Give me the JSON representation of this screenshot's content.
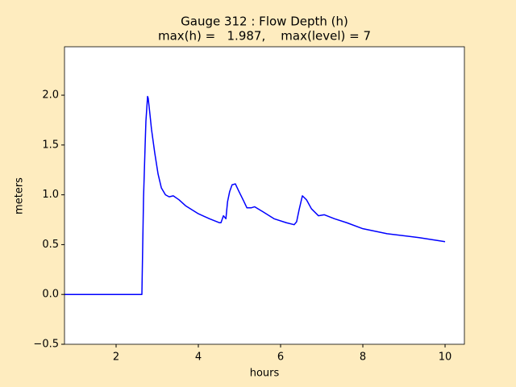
{
  "chart_data": {
    "type": "line",
    "title": "Gauge 312 : Flow Depth (h)",
    "subtitle": "max(h) =   1.987,    max(level) = 7",
    "x_label": "hours",
    "y_label": "meters",
    "xlim": [
      0.745,
      10.47
    ],
    "ylim": [
      -0.5,
      2.486
    ],
    "xticks": [
      2,
      4,
      6,
      8,
      10
    ],
    "yticks": [
      {
        "value": -0.5,
        "label": "−0.5"
      },
      {
        "value": 0,
        "label": "0.0"
      },
      0.5,
      {
        "value": 1,
        "label": "1.0"
      },
      1.5,
      {
        "value": 2,
        "label": "2.0"
      }
    ],
    "grid": false,
    "x": [
      0.745,
      2.627,
      2.667,
      2.706,
      2.725,
      2.765,
      2.78,
      2.82,
      2.86,
      2.94,
      3.02,
      3.1,
      3.2,
      3.29,
      3.39,
      3.53,
      3.69,
      4.0,
      4.27,
      4.51,
      4.55,
      4.61,
      4.67,
      4.71,
      4.76,
      4.82,
      4.9,
      4.98,
      5.1,
      5.18,
      5.29,
      5.37,
      5.57,
      5.84,
      6.14,
      6.33,
      6.39,
      6.45,
      6.53,
      6.63,
      6.75,
      6.92,
      7.06,
      7.31,
      7.61,
      8.0,
      8.59,
      9.37,
      10.0
    ],
    "series": [
      {
        "color": "#0000ff",
        "values": [
          0,
          0,
          0.97,
          1.5,
          1.74,
          1.987,
          1.97,
          1.82,
          1.66,
          1.42,
          1.21,
          1.07,
          1.0,
          0.98,
          0.99,
          0.95,
          0.89,
          0.81,
          0.76,
          0.72,
          0.72,
          0.79,
          0.76,
          0.93,
          1.03,
          1.1,
          1.11,
          1.04,
          0.94,
          0.87,
          0.87,
          0.88,
          0.83,
          0.76,
          0.72,
          0.7,
          0.73,
          0.85,
          0.99,
          0.95,
          0.86,
          0.79,
          0.8,
          0.76,
          0.72,
          0.66,
          0.61,
          0.57,
          0.53
        ]
      }
    ]
  }
}
